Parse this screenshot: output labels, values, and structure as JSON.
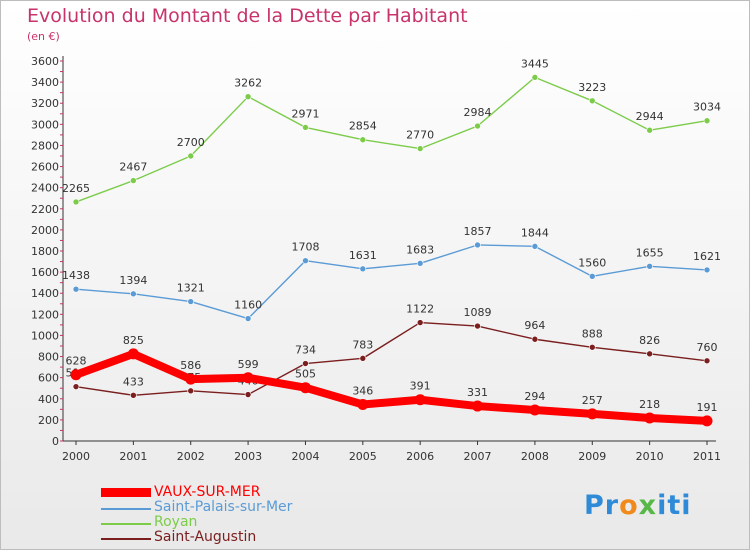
{
  "header": {
    "title": "Evolution du Montant de la Dette par Habitant",
    "subtitle": "(en €)"
  },
  "chart_data": {
    "type": "line",
    "title": "Evolution du Montant de la Dette par Habitant",
    "ylabel": "(en €)",
    "xlabel": "",
    "ylim": [
      0,
      3600
    ],
    "yticks": [
      0,
      200,
      400,
      600,
      800,
      1000,
      1200,
      1400,
      1600,
      1800,
      2000,
      2200,
      2400,
      2600,
      2800,
      3000,
      3200,
      3400,
      3600
    ],
    "grid": false,
    "legend_position": "bottom-left",
    "categories": [
      "2000",
      "2001",
      "2002",
      "2003",
      "2004",
      "2005",
      "2006",
      "2007",
      "2008",
      "2009",
      "2010",
      "2011"
    ],
    "series": [
      {
        "name": "Saint-Augustin",
        "color": "#7a1e1e",
        "values": [
          515,
          433,
          475,
          440,
          734,
          783,
          1122,
          1089,
          964,
          888,
          826,
          760
        ]
      },
      {
        "name": "Royan",
        "color": "#7ccc4a",
        "values": [
          2265,
          2467,
          2700,
          3262,
          2971,
          2854,
          2770,
          2984,
          3445,
          3223,
          2944,
          3034
        ]
      },
      {
        "name": "Saint-Palais-sur-Mer",
        "color": "#5b9bd5",
        "values": [
          1438,
          1394,
          1321,
          1160,
          1708,
          1631,
          1683,
          1857,
          1844,
          1560,
          1655,
          1621
        ]
      },
      {
        "name": "VAUX-SUR-MER",
        "color": "#ff0000",
        "values": [
          628,
          825,
          586,
          599,
          505,
          346,
          391,
          331,
          294,
          257,
          218,
          191
        ]
      }
    ]
  },
  "legend": {
    "items": [
      {
        "label": "VAUX-SUR-MER",
        "color": "#ff0000"
      },
      {
        "label": "Saint-Palais-sur-Mer",
        "color": "#5b9bd5"
      },
      {
        "label": "Royan",
        "color": "#7ccc4a"
      },
      {
        "label": "Saint-Augustin",
        "color": "#7a1e1e"
      }
    ]
  },
  "brand": {
    "part1": "Pr",
    "part2": "o",
    "part3": "x",
    "part4": "iti"
  }
}
